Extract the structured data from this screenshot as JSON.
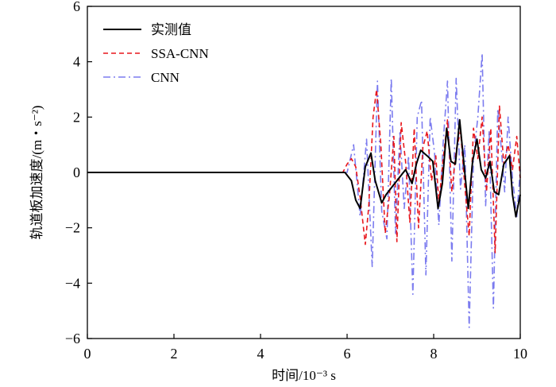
{
  "chart_data": {
    "type": "line",
    "title": "",
    "xlabel": "时间/10⁻³ s",
    "ylabel": "轨道板加速度/(m・s⁻²)",
    "xlim": [
      0,
      10
    ],
    "ylim": [
      -6,
      6
    ],
    "xticks": [
      0,
      2,
      4,
      6,
      8,
      10
    ],
    "yticks": [
      -6,
      -4,
      -2,
      0,
      2,
      4,
      6
    ],
    "legend_position": "top-left",
    "series": [
      {
        "name": "实测值",
        "color": "#000000",
        "style": "solid",
        "x": [
          0,
          5.95,
          6.1,
          6.2,
          6.3,
          6.42,
          6.55,
          6.65,
          6.8,
          6.9,
          7.05,
          7.2,
          7.35,
          7.5,
          7.6,
          7.7,
          7.85,
          7.98,
          8.1,
          8.2,
          8.3,
          8.4,
          8.5,
          8.6,
          8.68,
          8.8,
          8.9,
          9.0,
          9.1,
          9.2,
          9.3,
          9.4,
          9.5,
          9.62,
          9.75,
          9.82,
          9.9,
          10.0
        ],
        "y": [
          0,
          0,
          -0.3,
          -1.0,
          -1.3,
          0.2,
          0.7,
          -0.3,
          -1.1,
          -0.8,
          -0.5,
          -0.2,
          0.1,
          -0.4,
          0.3,
          0.8,
          0.6,
          0.4,
          -1.3,
          -0.4,
          1.6,
          0.4,
          0.3,
          1.9,
          0.6,
          -1.3,
          0.4,
          1.2,
          0.1,
          -0.2,
          0.4,
          -0.7,
          -0.8,
          0.3,
          0.6,
          -0.8,
          -1.6,
          -0.8
        ]
      },
      {
        "name": "SSA-CNN",
        "color": "#e8171c",
        "style": "dashed",
        "x": [
          0,
          5.9,
          6.0,
          6.1,
          6.2,
          6.3,
          6.42,
          6.5,
          6.6,
          6.68,
          6.78,
          6.88,
          6.98,
          7.08,
          7.15,
          7.25,
          7.35,
          7.45,
          7.55,
          7.65,
          7.75,
          7.85,
          7.95,
          8.05,
          8.12,
          8.22,
          8.32,
          8.42,
          8.52,
          8.62,
          8.72,
          8.82,
          8.92,
          9.02,
          9.12,
          9.22,
          9.32,
          9.42,
          9.52,
          9.62,
          9.72,
          9.82,
          9.92,
          10.0
        ],
        "y": [
          0,
          0,
          0.3,
          0.5,
          0.2,
          -0.9,
          -2.6,
          -1.2,
          2.0,
          3.0,
          1.0,
          -2.2,
          -0.8,
          1.3,
          -2.5,
          1.8,
          0.4,
          -1.8,
          1.6,
          -2.0,
          0.9,
          1.5,
          -0.3,
          0.6,
          -1.1,
          0.5,
          1.9,
          -0.7,
          0.8,
          1.5,
          -0.5,
          -2.3,
          1.6,
          0.5,
          2.0,
          -0.7,
          1.6,
          -2.9,
          2.4,
          0.3,
          1.0,
          0.1,
          1.3,
          -0.2
        ]
      },
      {
        "name": "CNN",
        "color": "#7b7bef",
        "style": "dashdot",
        "x": [
          0,
          6.0,
          6.15,
          6.3,
          6.45,
          6.58,
          6.7,
          6.8,
          6.92,
          7.02,
          7.12,
          7.22,
          7.32,
          7.42,
          7.52,
          7.62,
          7.72,
          7.82,
          7.92,
          8.02,
          8.12,
          8.22,
          8.32,
          8.42,
          8.52,
          8.62,
          8.72,
          8.82,
          8.92,
          9.02,
          9.12,
          9.2,
          9.28,
          9.38,
          9.48,
          9.56,
          9.64,
          9.72,
          9.82,
          9.92,
          10.0
        ],
        "y": [
          0,
          0,
          1.0,
          -1.6,
          1.2,
          -3.4,
          3.3,
          -1.4,
          -2.4,
          3.4,
          -2.2,
          1.5,
          -1.3,
          0.6,
          -4.4,
          2.0,
          2.6,
          -3.7,
          2.0,
          0.7,
          -1.9,
          1.1,
          3.3,
          -3.2,
          3.4,
          -0.6,
          1.0,
          -5.6,
          0.5,
          2.0,
          4.3,
          -1.2,
          1.5,
          -4.9,
          2.3,
          0.9,
          -0.7,
          2.0,
          -0.2,
          -1.6,
          0.1
        ]
      }
    ]
  }
}
